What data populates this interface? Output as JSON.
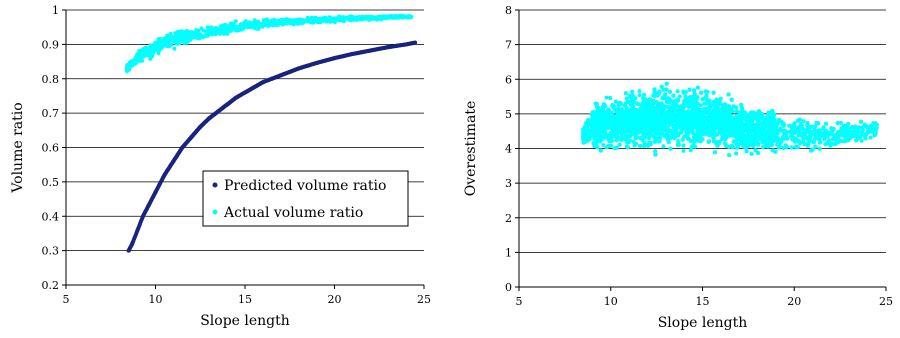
{
  "chart_data": [
    {
      "type": "scatter",
      "title": "",
      "xlabel": "Slope length",
      "ylabel": "Volume ratio",
      "xlim": [
        5,
        25
      ],
      "ylim": [
        0.2,
        1
      ],
      "xticks": [
        "5",
        "10",
        "15",
        "20",
        "25"
      ],
      "yticks": [
        "0.2",
        "0.3",
        "0.4",
        "0.5",
        "0.6",
        "0.7",
        "0.8",
        "0.9",
        "1"
      ],
      "grid": "horizontal",
      "legend_position": "center-right",
      "series": [
        {
          "name": "Predicted volume ratio",
          "color": "#1a237e",
          "marker": "dot",
          "x": [
            8.5,
            8.7,
            9,
            9.3,
            9.6,
            10,
            10.5,
            11,
            11.5,
            12,
            12.5,
            13,
            13.5,
            14,
            14.5,
            15,
            15.5,
            16,
            16.5,
            17,
            17.5,
            18,
            18.5,
            19,
            19.5,
            20,
            20.5,
            21,
            21.5,
            22,
            22.5,
            23,
            23.5,
            24,
            24.5
          ],
          "y": [
            0.3,
            0.32,
            0.36,
            0.4,
            0.43,
            0.47,
            0.52,
            0.56,
            0.6,
            0.63,
            0.66,
            0.685,
            0.705,
            0.725,
            0.745,
            0.76,
            0.775,
            0.79,
            0.8,
            0.81,
            0.82,
            0.83,
            0.838,
            0.846,
            0.853,
            0.86,
            0.866,
            0.872,
            0.877,
            0.882,
            0.887,
            0.892,
            0.896,
            0.9,
            0.905
          ]
        },
        {
          "name": "Actual volume ratio",
          "color": "#00ffff",
          "marker": "dot",
          "x": [
            8.4,
            8.6,
            8.8,
            9,
            9.2,
            9.5,
            9.8,
            10,
            10.3,
            10.6,
            11,
            11.5,
            12,
            12.5,
            13,
            13.5,
            14,
            14.5,
            15,
            15.5,
            16,
            16.5,
            17,
            17.5,
            18,
            18.5,
            19,
            19.5,
            20,
            20.5,
            21,
            21.5,
            22,
            22.5,
            23,
            23.5,
            24,
            24.3
          ],
          "y": [
            0.83,
            0.84,
            0.85,
            0.86,
            0.87,
            0.875,
            0.88,
            0.89,
            0.9,
            0.905,
            0.91,
            0.92,
            0.925,
            0.93,
            0.935,
            0.94,
            0.945,
            0.95,
            0.955,
            0.957,
            0.96,
            0.962,
            0.964,
            0.966,
            0.968,
            0.97,
            0.971,
            0.972,
            0.973,
            0.974,
            0.975,
            0.976,
            0.977,
            0.978,
            0.979,
            0.98,
            0.98,
            0.98
          ],
          "spread": [
            0.015,
            0.015,
            0.02,
            0.02,
            0.025,
            0.025,
            0.03,
            0.03,
            0.03,
            0.03,
            0.03,
            0.025,
            0.025,
            0.025,
            0.02,
            0.02,
            0.02,
            0.02,
            0.015,
            0.015,
            0.015,
            0.015,
            0.012,
            0.012,
            0.012,
            0.01,
            0.01,
            0.01,
            0.01,
            0.01,
            0.008,
            0.008,
            0.008,
            0.008,
            0.006,
            0.005,
            0.005,
            0.005
          ]
        }
      ]
    },
    {
      "type": "scatter",
      "title": "",
      "xlabel": "Slope length",
      "ylabel": "Overestimate",
      "xlim": [
        5,
        25
      ],
      "ylim": [
        0,
        8
      ],
      "xticks": [
        "5",
        "10",
        "15",
        "20",
        "25"
      ],
      "yticks": [
        "0",
        "1",
        "2",
        "3",
        "4",
        "5",
        "6",
        "7",
        "8"
      ],
      "grid": "horizontal",
      "legend_position": "none",
      "series": [
        {
          "color": "#00ffff",
          "marker": "dot",
          "x": [
            8.5,
            9,
            9.5,
            10,
            10.5,
            11,
            11.5,
            12,
            12.5,
            13,
            13.5,
            14,
            14.5,
            15,
            15.5,
            16,
            16.5,
            17,
            17.5,
            18,
            18.5,
            19,
            19.5,
            20,
            20.5,
            21,
            21.5,
            22,
            22.5,
            23,
            23.5,
            24,
            24.5
          ],
          "y": [
            4.4,
            4.6,
            4.7,
            4.7,
            4.75,
            4.8,
            4.8,
            4.85,
            4.85,
            4.9,
            4.9,
            4.9,
            4.9,
            4.85,
            4.8,
            4.75,
            4.7,
            4.6,
            4.55,
            4.5,
            4.5,
            4.5,
            4.45,
            4.45,
            4.4,
            4.4,
            4.4,
            4.4,
            4.4,
            4.45,
            4.5,
            4.5,
            4.6
          ],
          "spread": [
            0.3,
            0.7,
            0.9,
            1.0,
            1.0,
            1.05,
            1.05,
            1.1,
            1.1,
            1.1,
            1.15,
            1.15,
            1.1,
            1.05,
            1.0,
            1.0,
            0.95,
            0.9,
            0.85,
            0.8,
            0.8,
            0.75,
            0.7,
            0.7,
            0.65,
            0.6,
            0.55,
            0.5,
            0.45,
            0.4,
            0.35,
            0.35,
            0.3
          ]
        }
      ]
    }
  ]
}
